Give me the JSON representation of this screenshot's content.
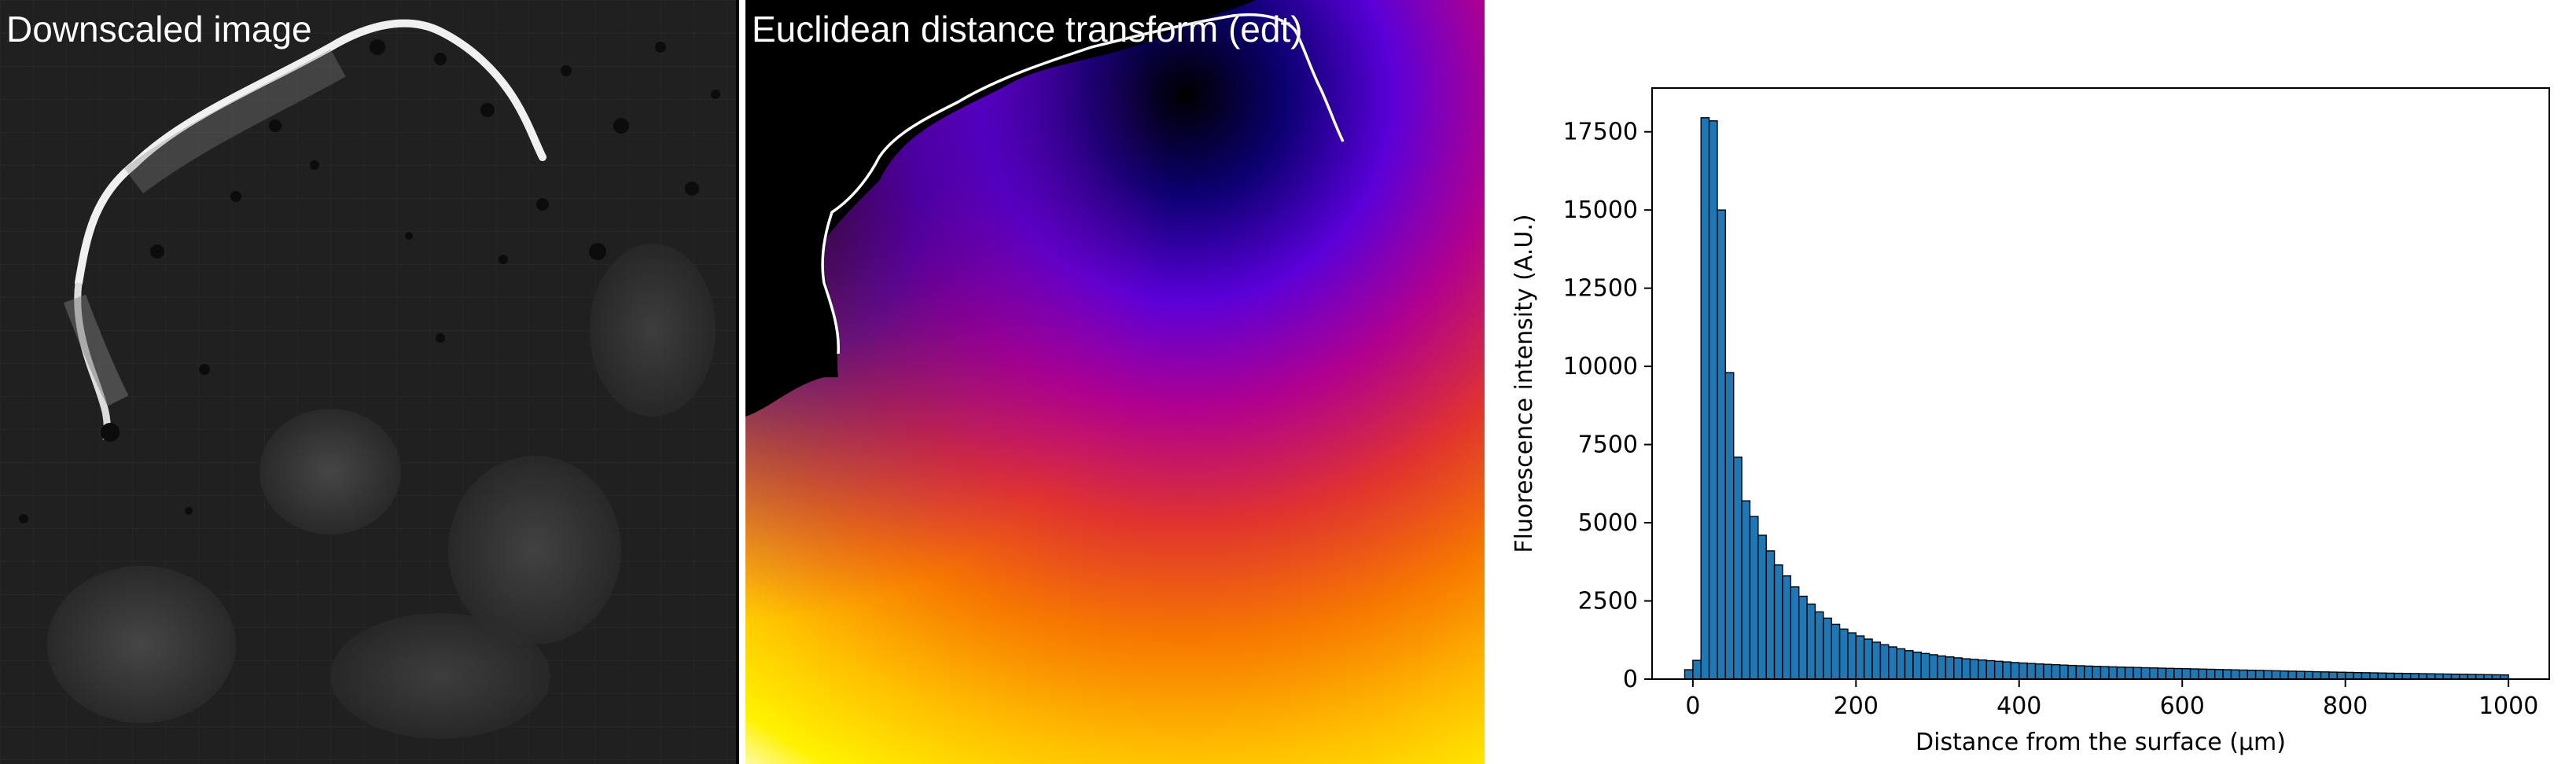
{
  "panels": {
    "raw_title": "Downscaled image",
    "edt_title": "Euclidean distance transform (edt)"
  },
  "chart_data": {
    "type": "bar",
    "title": "",
    "xlabel": "Distance from the surface (µm)",
    "ylabel": "Fluorescence intensity (A.U.)",
    "xlim": [
      -50,
      1050
    ],
    "ylim": [
      0,
      18900
    ],
    "xticks": [
      0,
      200,
      400,
      600,
      800,
      1000
    ],
    "yticks": [
      0,
      2500,
      5000,
      7500,
      10000,
      12500,
      15000,
      17500
    ],
    "bar_color": "#1f77b4",
    "edge_color": "#000000",
    "bin_width": 10,
    "bin_starts": [
      -10,
      0,
      10,
      20,
      30,
      40,
      50,
      60,
      70,
      80,
      90,
      100,
      110,
      120,
      130,
      140,
      150,
      160,
      170,
      180,
      190,
      200,
      210,
      220,
      230,
      240,
      250,
      260,
      270,
      280,
      290,
      300,
      310,
      320,
      330,
      340,
      350,
      360,
      370,
      380,
      390,
      400,
      410,
      420,
      430,
      440,
      450,
      460,
      470,
      480,
      490,
      500,
      510,
      520,
      530,
      540,
      550,
      560,
      570,
      580,
      590,
      600,
      610,
      620,
      630,
      640,
      650,
      660,
      670,
      680,
      690,
      700,
      710,
      720,
      730,
      740,
      750,
      760,
      770,
      780,
      790,
      800,
      810,
      820,
      830,
      840,
      850,
      860,
      870,
      880,
      890,
      900,
      910,
      920,
      930,
      940,
      950,
      960,
      970,
      980,
      990
    ],
    "values": [
      300,
      600,
      17950,
      17850,
      15000,
      9800,
      7100,
      5700,
      5200,
      4600,
      4100,
      3650,
      3300,
      2950,
      2650,
      2400,
      2150,
      1950,
      1750,
      1600,
      1480,
      1380,
      1280,
      1180,
      1100,
      1030,
      970,
      910,
      860,
      820,
      780,
      740,
      710,
      680,
      650,
      630,
      610,
      590,
      570,
      550,
      530,
      515,
      500,
      485,
      472,
      460,
      448,
      437,
      427,
      417,
      408,
      400,
      392,
      385,
      378,
      371,
      364,
      357,
      350,
      344,
      338,
      332,
      326,
      320,
      314,
      308,
      302,
      296,
      290,
      284,
      278,
      272,
      266,
      260,
      254,
      248,
      242,
      236,
      230,
      225,
      220,
      215,
      210,
      205,
      200,
      195,
      190,
      186,
      182,
      178,
      174,
      170,
      166,
      162,
      158,
      154,
      150,
      146,
      142,
      138,
      134
    ]
  }
}
